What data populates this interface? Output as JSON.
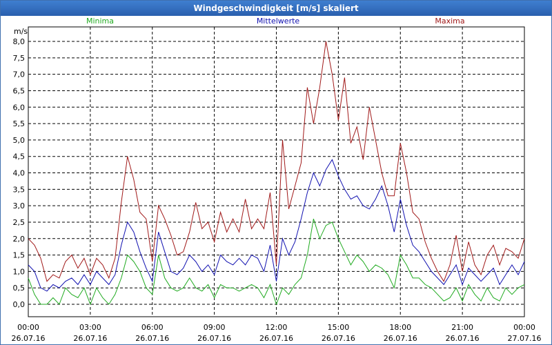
{
  "window": {
    "title": "Windgeschwindigkeit [m/s] skaliert"
  },
  "colors": {
    "titlebar": "#2f6cc0",
    "minima": "#1faa1f",
    "mittelwerte": "#1010b0",
    "maxima": "#a01818",
    "grid": "#000000"
  },
  "chart_data": {
    "type": "line",
    "title": "Windgeschwindigkeit [m/s] skaliert",
    "ylabel": "m/s",
    "xlabel": "",
    "ylim": [
      0,
      8
    ],
    "xlim": [
      0,
      24
    ],
    "grid": true,
    "legend_placement": "top",
    "y_ticks": [
      "0,0",
      "0,5",
      "1,0",
      "1,5",
      "2,0",
      "2,5",
      "3,0",
      "3,5",
      "4,0",
      "4,5",
      "5,0",
      "5,5",
      "6,0",
      "6,5",
      "7,0",
      "7,5",
      "8,0"
    ],
    "x_ticks": [
      {
        "time": "00:00",
        "date": "26.07.16"
      },
      {
        "time": "03:00",
        "date": "26.07.16"
      },
      {
        "time": "06:00",
        "date": "26.07.16"
      },
      {
        "time": "09:00",
        "date": "26.07.16"
      },
      {
        "time": "12:00",
        "date": "26.07.16"
      },
      {
        "time": "15:00",
        "date": "26.07.16"
      },
      {
        "time": "18:00",
        "date": "26.07.16"
      },
      {
        "time": "21:00",
        "date": "26.07.16"
      },
      {
        "time": "00:00",
        "date": "27.07.16"
      }
    ],
    "x_hours": [
      0,
      0.3,
      0.6,
      0.9,
      1.2,
      1.5,
      1.8,
      2.1,
      2.4,
      2.7,
      3.0,
      3.3,
      3.6,
      3.9,
      4.2,
      4.5,
      4.8,
      5.1,
      5.4,
      5.7,
      6.0,
      6.3,
      6.6,
      6.9,
      7.2,
      7.5,
      7.8,
      8.1,
      8.4,
      8.7,
      9.0,
      9.3,
      9.6,
      9.9,
      10.2,
      10.5,
      10.8,
      11.1,
      11.4,
      11.7,
      12.0,
      12.3,
      12.6,
      12.9,
      13.2,
      13.5,
      13.8,
      14.1,
      14.4,
      14.7,
      15.0,
      15.3,
      15.6,
      15.9,
      16.2,
      16.5,
      16.8,
      17.1,
      17.4,
      17.7,
      18.0,
      18.3,
      18.6,
      18.9,
      19.2,
      19.5,
      19.8,
      20.1,
      20.4,
      20.7,
      21.0,
      21.3,
      21.6,
      21.9,
      22.2,
      22.5,
      22.8,
      23.1,
      23.4,
      23.7,
      24.0
    ],
    "series": [
      {
        "name": "Minima",
        "key": "minima",
        "values": [
          0.8,
          0.3,
          0.0,
          0.0,
          0.2,
          0.0,
          0.5,
          0.3,
          0.2,
          0.5,
          0.0,
          0.5,
          0.2,
          0.0,
          0.3,
          0.8,
          1.5,
          1.3,
          1.0,
          0.5,
          0.3,
          1.5,
          0.8,
          0.5,
          0.4,
          0.5,
          0.8,
          0.5,
          0.4,
          0.6,
          0.2,
          0.6,
          0.5,
          0.5,
          0.4,
          0.5,
          0.6,
          0.5,
          0.2,
          0.6,
          0.0,
          0.5,
          0.3,
          0.6,
          0.8,
          1.5,
          2.6,
          2.0,
          2.4,
          2.5,
          2.0,
          1.6,
          1.2,
          1.5,
          1.3,
          1.0,
          1.2,
          1.1,
          0.9,
          0.5,
          1.5,
          1.2,
          0.8,
          0.8,
          0.6,
          0.5,
          0.3,
          0.1,
          0.2,
          0.5,
          0.1,
          0.6,
          0.3,
          0.1,
          0.5,
          0.2,
          0.1,
          0.5,
          0.3,
          0.5,
          0.6
        ]
      },
      {
        "name": "Mittelwerte",
        "key": "mittelwerte",
        "values": [
          1.2,
          1.0,
          0.5,
          0.4,
          0.6,
          0.5,
          0.7,
          0.8,
          0.6,
          0.9,
          0.6,
          1.0,
          0.8,
          0.6,
          0.9,
          1.8,
          2.5,
          2.2,
          1.6,
          1.1,
          0.7,
          2.2,
          1.6,
          1.0,
          0.9,
          1.1,
          1.5,
          1.3,
          1.0,
          1.2,
          0.9,
          1.5,
          1.3,
          1.2,
          1.4,
          1.2,
          1.5,
          1.4,
          1.0,
          1.8,
          0.7,
          2.0,
          1.5,
          1.9,
          2.6,
          3.4,
          4.0,
          3.6,
          4.1,
          4.4,
          3.9,
          3.5,
          3.2,
          3.3,
          3.0,
          2.9,
          3.2,
          3.6,
          3.0,
          2.2,
          3.2,
          2.4,
          1.8,
          1.6,
          1.3,
          1.0,
          0.8,
          0.6,
          0.9,
          1.2,
          0.6,
          1.1,
          0.9,
          0.7,
          0.9,
          1.1,
          0.6,
          0.9,
          1.2,
          0.9,
          1.3
        ]
      },
      {
        "name": "Maxima",
        "key": "maxima",
        "values": [
          2.0,
          1.8,
          1.4,
          0.7,
          0.9,
          0.8,
          1.3,
          1.5,
          1.1,
          1.4,
          0.9,
          1.4,
          1.2,
          0.8,
          1.4,
          3.1,
          4.5,
          3.8,
          2.8,
          2.6,
          1.3,
          3.0,
          2.6,
          2.1,
          1.5,
          1.6,
          2.2,
          3.1,
          2.3,
          2.5,
          1.9,
          2.8,
          2.2,
          2.6,
          2.2,
          3.2,
          2.3,
          2.6,
          2.3,
          3.4,
          1.2,
          5.0,
          2.9,
          3.6,
          4.3,
          6.6,
          5.5,
          6.6,
          8.0,
          7.0,
          5.6,
          6.9,
          4.9,
          5.4,
          4.4,
          6.0,
          5.0,
          4.0,
          3.3,
          3.3,
          4.9,
          4.0,
          2.8,
          2.6,
          1.9,
          1.4,
          1.0,
          0.7,
          1.2,
          2.1,
          1.0,
          1.9,
          1.2,
          0.9,
          1.5,
          1.8,
          1.2,
          1.7,
          1.6,
          1.4,
          2.0
        ]
      }
    ]
  }
}
